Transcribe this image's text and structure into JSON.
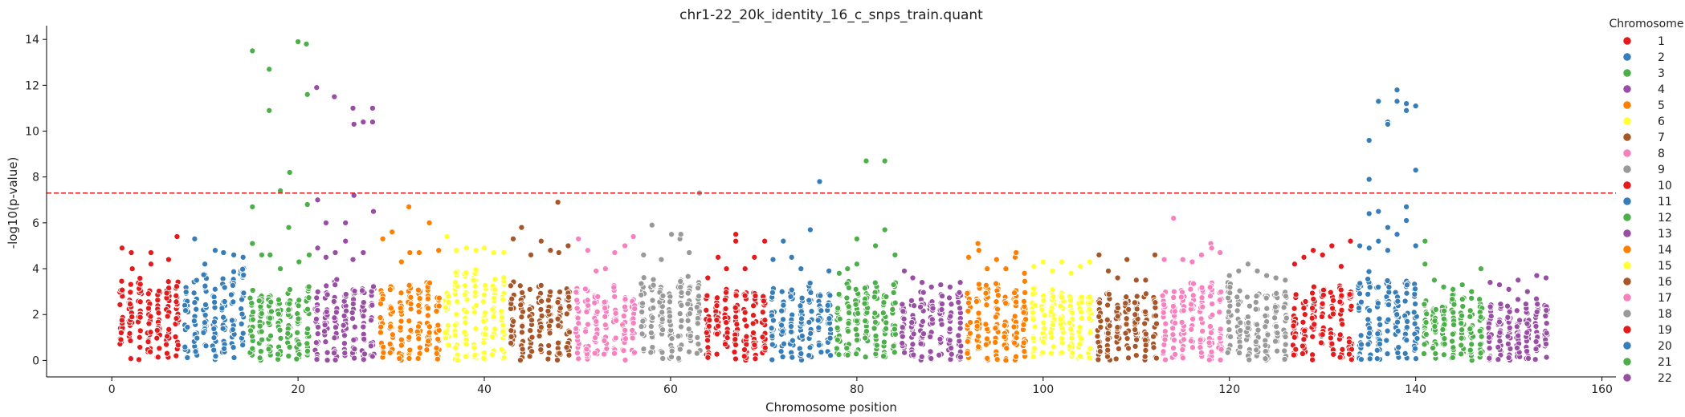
{
  "chart_data": {
    "type": "scatter",
    "title": "chr1-22_20k_identity_16_c_snps_train.quant",
    "xlabel": "Chromosome position",
    "ylabel": "-log10(p-value)",
    "xlim": [
      -7,
      161.5
    ],
    "ylim": [
      -0.72,
      14.6
    ],
    "xticks": [
      0,
      20,
      40,
      60,
      80,
      100,
      120,
      140,
      160
    ],
    "yticks": [
      0,
      2,
      4,
      6,
      8,
      10,
      12,
      14
    ],
    "xtick_labels": [
      "0",
      "20",
      "40",
      "60",
      "80",
      "100",
      "120",
      "140",
      "160"
    ],
    "ytick_labels": [
      "0",
      "2",
      "4",
      "6",
      "8",
      "10",
      "12",
      "14"
    ],
    "threshold": 7.3,
    "threshold_color": "#e41a1c",
    "grid": false,
    "legend_title": "Chromosome",
    "legend_position": "right",
    "series": [
      {
        "name": "1",
        "color": "#e41a1c",
        "x_range": [
          1,
          7
        ],
        "bulk_max": 3.6,
        "points": [
          [
            1.1,
            4.9
          ],
          [
            2.1,
            4.7
          ],
          [
            4.2,
            4.7
          ],
          [
            7.0,
            5.4
          ],
          [
            6.1,
            4.4
          ],
          [
            2.2,
            4.0
          ],
          [
            4.2,
            4.2
          ]
        ]
      },
      {
        "name": "2",
        "color": "#377eb8",
        "x_range": [
          8,
          14
        ],
        "bulk_max": 3.9,
        "points": [
          [
            8.9,
            5.3
          ],
          [
            11.1,
            4.8
          ],
          [
            12.0,
            4.7
          ],
          [
            13.1,
            4.6
          ],
          [
            14.1,
            4.5
          ],
          [
            10.0,
            4.2
          ]
        ]
      },
      {
        "name": "3",
        "color": "#4daf4a",
        "x_range": [
          15,
          21
        ],
        "bulk_max": 3.2,
        "points": [
          [
            15.1,
            13.5
          ],
          [
            16.9,
            12.7
          ],
          [
            16.9,
            10.9
          ],
          [
            20.0,
            13.9
          ],
          [
            20.9,
            13.8
          ],
          [
            21.0,
            11.6
          ],
          [
            19.1,
            8.2
          ],
          [
            18.1,
            7.4
          ],
          [
            15.1,
            6.7
          ],
          [
            21.0,
            6.8
          ],
          [
            19.0,
            5.8
          ],
          [
            15.1,
            5.1
          ],
          [
            16.1,
            4.6
          ],
          [
            17.0,
            4.6
          ],
          [
            18.1,
            4.0
          ],
          [
            20.1,
            4.3
          ],
          [
            21.2,
            4.6
          ]
        ]
      },
      {
        "name": "4",
        "color": "#984ea3",
        "x_range": [
          22,
          28
        ],
        "bulk_max": 3.6,
        "points": [
          [
            22.0,
            11.9
          ],
          [
            23.9,
            11.5
          ],
          [
            25.9,
            11.0
          ],
          [
            26.0,
            10.3
          ],
          [
            27.0,
            10.4
          ],
          [
            28.0,
            11.0
          ],
          [
            28.0,
            10.4
          ],
          [
            22.1,
            7.0
          ],
          [
            26.0,
            7.2
          ],
          [
            28.1,
            6.5
          ],
          [
            23.0,
            6.0
          ],
          [
            25.1,
            6.0
          ],
          [
            25.1,
            5.2
          ],
          [
            22.1,
            4.9
          ],
          [
            24.0,
            4.7
          ],
          [
            27.0,
            4.7
          ],
          [
            25.9,
            4.4
          ],
          [
            23.0,
            4.5
          ]
        ]
      },
      {
        "name": "5",
        "color": "#ff7f00",
        "x_range": [
          29,
          35
        ],
        "bulk_max": 3.6,
        "points": [
          [
            31.9,
            6.7
          ],
          [
            30.1,
            5.6
          ],
          [
            29.1,
            5.3
          ],
          [
            34.1,
            6.0
          ],
          [
            33.0,
            4.7
          ],
          [
            32.0,
            4.7
          ],
          [
            35.1,
            4.8
          ],
          [
            31.1,
            4.3
          ]
        ]
      },
      {
        "name": "6",
        "color": "#ffff33",
        "x_range": [
          36,
          42
        ],
        "bulk_max": 3.9,
        "points": [
          [
            36.0,
            5.4
          ],
          [
            38.1,
            4.9
          ],
          [
            39.1,
            4.8
          ],
          [
            40.0,
            4.9
          ],
          [
            41.0,
            4.7
          ],
          [
            42.1,
            4.7
          ],
          [
            37.0,
            4.8
          ]
        ]
      },
      {
        "name": "7",
        "color": "#a65628",
        "x_range": [
          43,
          49
        ],
        "bulk_max": 3.5,
        "points": [
          [
            47.9,
            6.9
          ],
          [
            44.0,
            5.8
          ],
          [
            43.1,
            5.3
          ],
          [
            46.1,
            5.2
          ],
          [
            49.0,
            5.0
          ],
          [
            45.0,
            4.6
          ],
          [
            47.1,
            4.8
          ],
          [
            48.0,
            4.7
          ]
        ]
      },
      {
        "name": "8",
        "color": "#f781bf",
        "x_range": [
          50,
          56
        ],
        "bulk_max": 3.2,
        "points": [
          [
            56.0,
            5.4
          ],
          [
            55.1,
            5.0
          ],
          [
            54.0,
            4.7
          ],
          [
            50.1,
            5.3
          ],
          [
            51.1,
            4.8
          ],
          [
            53.0,
            4.0
          ],
          [
            52.0,
            3.9
          ]
        ]
      },
      {
        "name": "9",
        "color": "#999999",
        "x_range": [
          57,
          63
        ],
        "bulk_max": 3.6,
        "points": [
          [
            63.1,
            7.3
          ],
          [
            58.0,
            5.9
          ],
          [
            60.1,
            5.5
          ],
          [
            61.0,
            5.3
          ],
          [
            61.1,
            5.5
          ],
          [
            59.0,
            4.4
          ],
          [
            57.1,
            4.6
          ],
          [
            62.0,
            4.7
          ]
        ]
      },
      {
        "name": "10",
        "color": "#e41a1c",
        "x_range": [
          64,
          70
        ],
        "bulk_max": 3.2,
        "points": [
          [
            67.0,
            5.5
          ],
          [
            67.0,
            5.2
          ],
          [
            70.1,
            5.2
          ],
          [
            65.1,
            4.5
          ],
          [
            69.0,
            4.5
          ],
          [
            66.0,
            4.0
          ],
          [
            68.0,
            4.0
          ],
          [
            64.0,
            3.6
          ]
        ]
      },
      {
        "name": "11",
        "color": "#377eb8",
        "x_range": [
          71,
          77
        ],
        "bulk_max": 3.4,
        "points": [
          [
            76.0,
            7.8
          ],
          [
            75.0,
            5.7
          ],
          [
            72.1,
            5.2
          ],
          [
            71.0,
            4.4
          ],
          [
            73.0,
            4.5
          ],
          [
            74.0,
            4.0
          ],
          [
            77.0,
            3.9
          ]
        ]
      },
      {
        "name": "12",
        "color": "#4daf4a",
        "x_range": [
          78,
          84
        ],
        "bulk_max": 3.5,
        "points": [
          [
            81.0,
            8.7
          ],
          [
            83.0,
            8.7
          ],
          [
            83.0,
            5.7
          ],
          [
            80.0,
            5.3
          ],
          [
            82.0,
            5.0
          ],
          [
            84.1,
            4.6
          ],
          [
            78.1,
            3.8
          ],
          [
            79.0,
            4.0
          ],
          [
            80.0,
            4.2
          ]
        ]
      },
      {
        "name": "13",
        "color": "#984ea3",
        "x_range": [
          85,
          91
        ],
        "bulk_max": 3.1,
        "points": [
          [
            85.1,
            3.9
          ],
          [
            86.0,
            3.6
          ],
          [
            87.0,
            3.4
          ],
          [
            88.0,
            3.2
          ],
          [
            89.0,
            3.3
          ],
          [
            90.0,
            3.2
          ],
          [
            91.1,
            3.4
          ]
        ]
      },
      {
        "name": "14",
        "color": "#ff7f00",
        "x_range": [
          92,
          98
        ],
        "bulk_max": 3.5,
        "points": [
          [
            93.0,
            5.1
          ],
          [
            93.1,
            4.8
          ],
          [
            92.0,
            4.5
          ],
          [
            95.0,
            4.4
          ],
          [
            97.0,
            4.5
          ],
          [
            97.1,
            4.7
          ],
          [
            94.0,
            4.0
          ],
          [
            96.0,
            4.0
          ],
          [
            98.0,
            3.8
          ]
        ]
      },
      {
        "name": "15",
        "color": "#ffff33",
        "x_range": [
          99,
          105
        ],
        "bulk_max": 3.4,
        "points": [
          [
            100.0,
            4.3
          ],
          [
            102.0,
            4.3
          ],
          [
            105.0,
            4.3
          ],
          [
            104.0,
            4.1
          ],
          [
            99.0,
            4.1
          ],
          [
            101.0,
            3.9
          ],
          [
            103.0,
            3.8
          ]
        ]
      },
      {
        "name": "16",
        "color": "#a65628",
        "x_range": [
          106,
          112
        ],
        "bulk_max": 2.9,
        "points": [
          [
            106.0,
            4.6
          ],
          [
            109.0,
            4.4
          ],
          [
            112.0,
            4.6
          ],
          [
            107.0,
            3.9
          ],
          [
            108.0,
            3.6
          ],
          [
            110.0,
            3.5
          ],
          [
            111.0,
            3.5
          ]
        ]
      },
      {
        "name": "17",
        "color": "#f781bf",
        "x_range": [
          113,
          119
        ],
        "bulk_max": 3.6,
        "points": [
          [
            114.0,
            6.2
          ],
          [
            118.0,
            5.1
          ],
          [
            118.1,
            4.9
          ],
          [
            119.0,
            4.7
          ],
          [
            117.0,
            4.6
          ],
          [
            113.0,
            4.4
          ],
          [
            115.0,
            4.4
          ],
          [
            116.0,
            4.3
          ]
        ]
      },
      {
        "name": "18",
        "color": "#999999",
        "x_range": [
          120,
          126
        ],
        "bulk_max": 3.3,
        "points": [
          [
            122.0,
            4.2
          ],
          [
            121.0,
            3.9
          ],
          [
            123.0,
            3.9
          ],
          [
            124.0,
            3.7
          ],
          [
            125.0,
            3.6
          ],
          [
            120.0,
            3.7
          ],
          [
            126.0,
            3.5
          ]
        ]
      },
      {
        "name": "19",
        "color": "#e41a1c",
        "x_range": [
          127,
          133
        ],
        "bulk_max": 3.3,
        "points": [
          [
            131.0,
            5.0
          ],
          [
            133.0,
            5.2
          ],
          [
            128.0,
            4.5
          ],
          [
            129.0,
            4.8
          ],
          [
            130.0,
            4.6
          ],
          [
            127.0,
            4.2
          ],
          [
            132.0,
            4.1
          ]
        ]
      },
      {
        "name": "20",
        "color": "#377eb8",
        "x_range": [
          134,
          140
        ],
        "bulk_max": 3.9,
        "points": [
          [
            138.0,
            11.8
          ],
          [
            136.0,
            11.3
          ],
          [
            139.0,
            11.2
          ],
          [
            140.0,
            11.1
          ],
          [
            138.0,
            11.3
          ],
          [
            137.0,
            10.4
          ],
          [
            137.0,
            10.3
          ],
          [
            139.0,
            10.9
          ],
          [
            135.0,
            9.6
          ],
          [
            140.0,
            8.3
          ],
          [
            135.0,
            7.9
          ],
          [
            139.0,
            6.7
          ],
          [
            135.0,
            6.4
          ],
          [
            136.0,
            6.5
          ],
          [
            137.0,
            5.8
          ],
          [
            138.0,
            5.5
          ],
          [
            139.0,
            6.1
          ],
          [
            136.0,
            5.2
          ],
          [
            134.0,
            5.0
          ],
          [
            140.0,
            5.0
          ],
          [
            137.0,
            4.8
          ],
          [
            135.0,
            4.9
          ]
        ]
      },
      {
        "name": "21",
        "color": "#4daf4a",
        "x_range": [
          141,
          147
        ],
        "bulk_max": 2.9,
        "points": [
          [
            141.0,
            5.2
          ],
          [
            141.0,
            4.2
          ],
          [
            147.0,
            4.0
          ],
          [
            142.0,
            3.5
          ],
          [
            143.0,
            3.2
          ],
          [
            144.0,
            3.1
          ],
          [
            145.0,
            3.3
          ],
          [
            146.0,
            3.0
          ]
        ]
      },
      {
        "name": "22",
        "color": "#984ea3",
        "x_range": [
          148,
          154
        ],
        "bulk_max": 2.9,
        "points": [
          [
            153.0,
            3.7
          ],
          [
            154.0,
            3.6
          ],
          [
            148.0,
            3.4
          ],
          [
            149.0,
            3.3
          ],
          [
            150.0,
            3.1
          ],
          [
            151.0,
            3.5
          ],
          [
            152.0,
            3.0
          ]
        ]
      }
    ]
  }
}
